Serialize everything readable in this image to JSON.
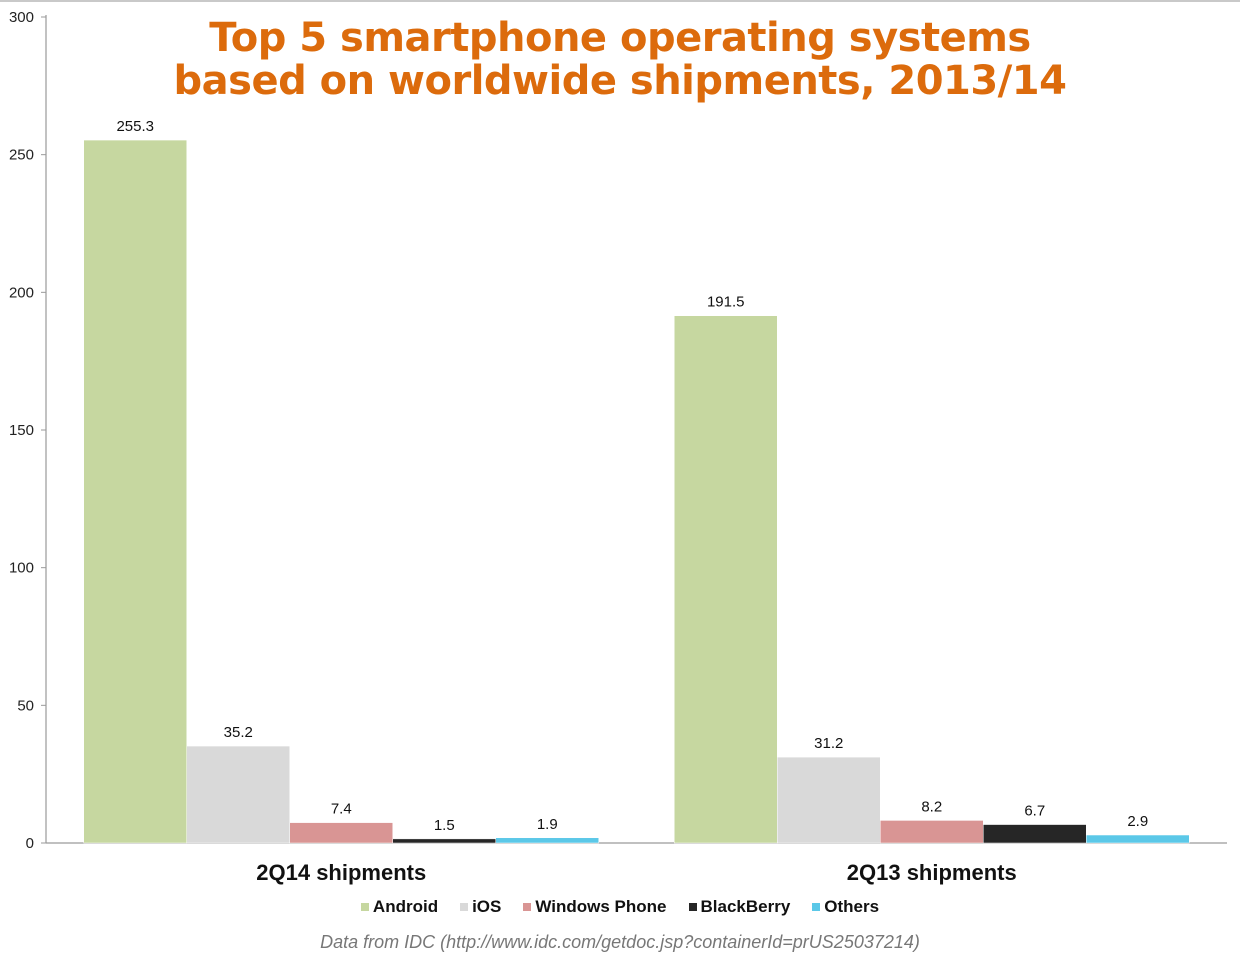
{
  "title_lines": [
    "Top 5 smartphone operating systems",
    "based on worldwide shipments, 2013/14"
  ],
  "source": "Data from IDC (http://www.idc.com/getdoc.jsp?containerId=prUS25037214)",
  "colors": {
    "title": "#dc6b0c",
    "android": "#c6d7a0",
    "ios": "#d9d9d9",
    "windows_phone": "#d99594",
    "blackberry": "#262626",
    "others": "#5bc8e8"
  },
  "chart_data": {
    "type": "bar",
    "title": "Top 5 smartphone operating systems based on worldwide shipments, 2013/14",
    "categories": [
      "2Q14 shipments",
      "2Q13 shipments"
    ],
    "series": [
      {
        "name": "Android",
        "values": [
          255.3,
          191.5
        ],
        "color": "#c6d7a0"
      },
      {
        "name": "iOS",
        "values": [
          35.2,
          31.2
        ],
        "color": "#d9d9d9"
      },
      {
        "name": "Windows Phone",
        "values": [
          7.4,
          8.2
        ],
        "color": "#d99594"
      },
      {
        "name": "BlackBerry",
        "values": [
          1.5,
          6.7
        ],
        "color": "#262626"
      },
      {
        "name": "Others",
        "values": [
          1.9,
          2.9
        ],
        "color": "#5bc8e8"
      }
    ],
    "yticks": [
      0,
      50,
      100,
      150,
      200,
      250,
      300
    ],
    "ylim": [
      0,
      300
    ],
    "xlabel": "",
    "ylabel": "",
    "grid": false,
    "legend_position": "bottom"
  }
}
